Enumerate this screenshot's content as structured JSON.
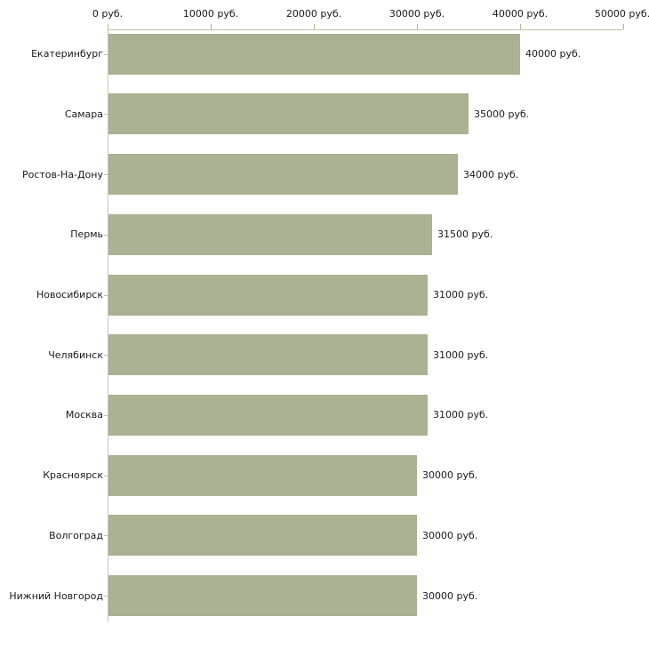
{
  "chart_data": {
    "type": "bar",
    "orientation": "horizontal",
    "title": "",
    "xlabel": "",
    "ylabel": "",
    "unit": "руб.",
    "categories": [
      "Екатеринбург",
      "Самара",
      "Ростов-На-Дону",
      "Пермь",
      "Новосибирск",
      "Челябинск",
      "Москва",
      "Красноярск",
      "Волгоград",
      "Нижний Новгород"
    ],
    "values": [
      40000,
      35000,
      34000,
      31500,
      31000,
      31000,
      31000,
      30000,
      30000,
      30000
    ],
    "value_labels": [
      "40000 руб.",
      "35000 руб.",
      "34000 руб.",
      "31500 руб.",
      "31000 руб.",
      "31000 руб.",
      "31000 руб.",
      "30000 руб.",
      "30000 руб.",
      "30000 руб."
    ],
    "x_ticks": [
      0,
      10000,
      20000,
      30000,
      40000,
      50000
    ],
    "x_tick_labels": [
      "0 руб.",
      "10000 руб.",
      "20000 руб.",
      "30000 руб.",
      "40000 руб.",
      "50000 руб."
    ],
    "xlim": [
      0,
      50000
    ],
    "grid": false,
    "legend": false,
    "colors": {
      "bar": "#abb293",
      "axis_line": "#c3c3a6",
      "category_axis_line": "#c6c6c6",
      "tick": "#b4b492",
      "text": "#1a1a1a",
      "background": "#ffffff"
    }
  }
}
